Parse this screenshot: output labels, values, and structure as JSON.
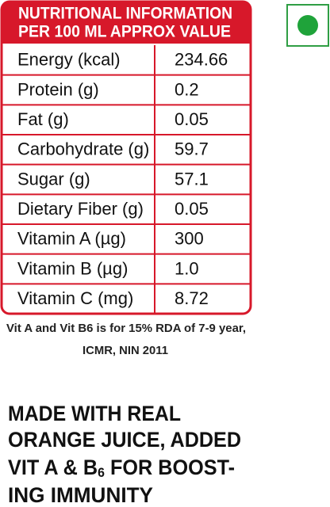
{
  "header": {
    "lines": [
      "NUTRITIONAL INFORMATION",
      "PER 100 ML APPROX VALUE"
    ]
  },
  "table": {
    "rows": [
      [
        "Energy (kcal)",
        "234.66"
      ],
      [
        "Protein (g)",
        "0.2"
      ],
      [
        "Fat (g)",
        "0.05"
      ],
      [
        "Carbohydrate (g)",
        "59.7"
      ],
      [
        "Sugar (g)",
        "57.1"
      ],
      [
        "Dietary Fiber (g)",
        "0.05"
      ],
      [
        "Vitamin A (µg)",
        "300"
      ],
      [
        "Vitamin B (µg)",
        "1.0"
      ],
      [
        "Vitamin C (mg)",
        "8.72"
      ]
    ]
  },
  "footnote": {
    "lines": [
      "Vit A and Vit B6 is for 15% RDA of 7-9 year,",
      "ICMR, NIN 2011"
    ]
  },
  "tagline": {
    "lines": [
      "MADE WITH REAL",
      "ORANGE JUICE, ADDED"
    ],
    "line3": {
      "before": "VIT A & B",
      "subscript": "6",
      "after": " FOR BOOST-"
    },
    "line4": "ING IMMUNITY"
  }
}
